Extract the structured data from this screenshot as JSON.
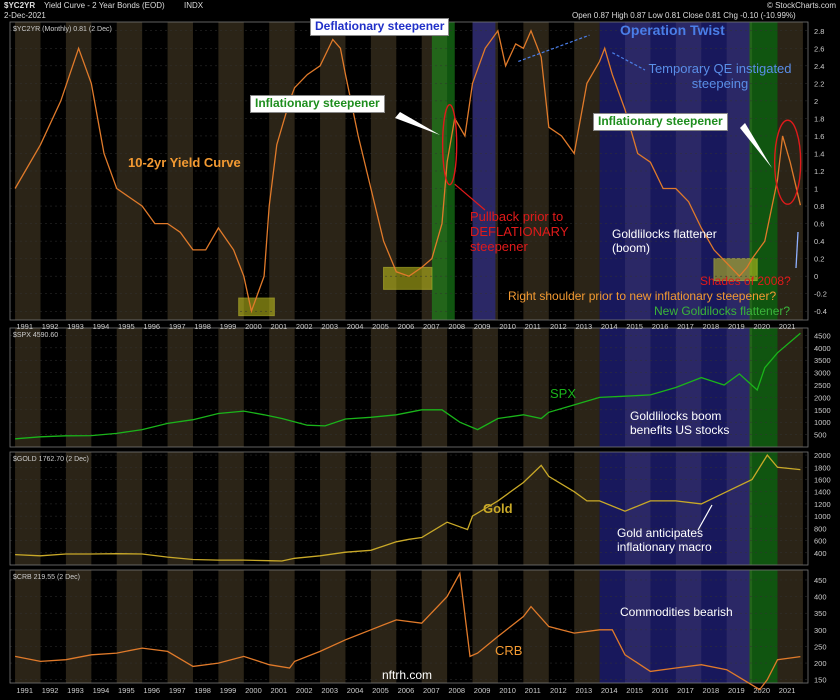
{
  "header": {
    "symbol": "$YC2YR",
    "name": "Yield Curve - 2 Year Bonds (EOD)",
    "exchange": "INDX",
    "date": "2-Dec-2021",
    "copyright": "© StockCharts.com",
    "ohlc": "Open 0.87  High 0.87  Low 0.81  Close 0.81  Chg -0.10 (-10.99%)"
  },
  "panels": [
    {
      "id": "yc",
      "legend": "$YC2YR (Monthly) 0.81 (2 Dec)",
      "color": "#e07a2a",
      "ylim": [
        -0.5,
        2.9
      ],
      "ticks": [
        -0.4,
        -0.2,
        0,
        0.2,
        0.4,
        0.6,
        0.8,
        1,
        1.2,
        1.4,
        1.6,
        1.8,
        2,
        2.2,
        2.4,
        2.6,
        2.8
      ]
    },
    {
      "id": "spx",
      "legend": "$SPX 4590.60",
      "color": "#1ab41a",
      "ylim": [
        0,
        4800
      ],
      "ticks": [
        500,
        1000,
        1500,
        2000,
        2500,
        3000,
        3500,
        4000,
        4500
      ]
    },
    {
      "id": "gold",
      "legend": "$GOLD 1762.70 (2 Dec)",
      "color": "#c9a928",
      "ylim": [
        200,
        2050
      ],
      "ticks": [
        400,
        600,
        800,
        1000,
        1200,
        1400,
        1600,
        1800,
        2000
      ]
    },
    {
      "id": "crb",
      "legend": "$CRB 219.55 (2 Dec)",
      "color": "#e07a2a",
      "ylim": [
        140,
        480
      ],
      "ticks": [
        150,
        200,
        250,
        300,
        350,
        400,
        450
      ]
    }
  ],
  "chart_data": {
    "type": "line",
    "x_years": [
      "1991",
      "1992",
      "1993",
      "1994",
      "1995",
      "1996",
      "1997",
      "1998",
      "1999",
      "2000",
      "2001",
      "2002",
      "2003",
      "2004",
      "2005",
      "2006",
      "2007",
      "2008",
      "2009",
      "2010",
      "2011",
      "2012",
      "2013",
      "2014",
      "2015",
      "2016",
      "2017",
      "2018",
      "2019",
      "2020",
      "2021"
    ],
    "x_range": [
      1990.8,
      2022.2
    ],
    "series": [
      {
        "panel": "yc",
        "x": [
          1991,
          1992,
          1992.8,
          1993.5,
          1994,
          1994.5,
          1995,
          1996,
          1996.5,
          1997,
          1997.5,
          1998,
          1998.5,
          1999,
          1999.6,
          2000,
          2000.3,
          2000.8,
          2001,
          2001.3,
          2001.8,
          2002,
          2002.5,
          2003,
          2003.5,
          2003.8,
          2004,
          2004.5,
          2005,
          2005.5,
          2006,
          2006.5,
          2007,
          2007.4,
          2007.8,
          2008,
          2008.3,
          2008.7,
          2009,
          2009.5,
          2010,
          2010.3,
          2010.7,
          2011,
          2011.3,
          2011.7,
          2012,
          2012.5,
          2013,
          2013.5,
          2014,
          2014.2,
          2014.5,
          2015,
          2015.5,
          2016,
          2016.5,
          2017,
          2017.5,
          2018,
          2018.5,
          2019,
          2019.5,
          2019.8,
          2020,
          2020.5,
          2021,
          2021.2,
          2021.5,
          2021.9
        ],
        "y": [
          1.0,
          1.5,
          2.0,
          2.6,
          2.2,
          1.4,
          1.0,
          0.8,
          0.6,
          0.6,
          0.5,
          0.3,
          0.3,
          0.55,
          0.3,
          0.0,
          -0.4,
          0.0,
          0.8,
          1.5,
          2.0,
          2.15,
          2.3,
          2.4,
          2.7,
          2.6,
          2.3,
          1.6,
          1.0,
          0.4,
          0.05,
          0.0,
          0.1,
          0.2,
          0.6,
          1.3,
          1.8,
          1.6,
          2.2,
          2.6,
          2.8,
          2.4,
          2.65,
          2.6,
          2.8,
          2.5,
          1.7,
          1.6,
          1.4,
          2.2,
          2.45,
          2.6,
          2.3,
          1.9,
          1.4,
          1.3,
          1.0,
          1.0,
          0.85,
          0.55,
          0.3,
          0.15,
          0.0,
          0.1,
          0.2,
          0.4,
          1.1,
          1.6,
          1.3,
          0.81
        ]
      },
      {
        "panel": "spx",
        "x": [
          1991,
          1992,
          1993,
          1994,
          1995,
          1996,
          1997,
          1998,
          1999,
          2000,
          2000.8,
          2001.5,
          2002.5,
          2003.2,
          2004,
          2005,
          2006,
          2007,
          2007.8,
          2008.5,
          2009.2,
          2010,
          2011,
          2011.7,
          2012,
          2013,
          2014,
          2015,
          2016,
          2017,
          2018,
          2018.9,
          2019.5,
          2020.2,
          2020.5,
          2021,
          2021.9
        ],
        "y": [
          330,
          410,
          450,
          460,
          550,
          700,
          950,
          1100,
          1350,
          1450,
          1300,
          1150,
          880,
          850,
          1130,
          1200,
          1300,
          1500,
          1500,
          1000,
          700,
          1150,
          1300,
          1150,
          1400,
          1700,
          2000,
          2050,
          2100,
          2400,
          2800,
          2500,
          2950,
          2300,
          3200,
          3800,
          4590
        ]
      },
      {
        "panel": "gold",
        "x": [
          1991,
          1992,
          1993,
          1994,
          1995,
          1996,
          1997,
          1998,
          1999,
          2000,
          2001,
          2001.5,
          2002,
          2003,
          2004,
          2005,
          2006,
          2006.5,
          2007,
          2008,
          2008.8,
          2009,
          2010,
          2011,
          2011.7,
          2012,
          2013,
          2013.5,
          2014,
          2015,
          2016,
          2017,
          2018,
          2019,
          2020,
          2020.6,
          2021,
          2021.9
        ],
        "y": [
          370,
          350,
          380,
          380,
          385,
          380,
          330,
          290,
          280,
          280,
          270,
          265,
          310,
          350,
          410,
          440,
          580,
          620,
          650,
          900,
          780,
          1000,
          1250,
          1550,
          1830,
          1650,
          1400,
          1250,
          1250,
          1080,
          1250,
          1250,
          1200,
          1400,
          1600,
          2000,
          1800,
          1762
        ]
      },
      {
        "panel": "crb",
        "x": [
          1991,
          1992,
          1993,
          1994,
          1995,
          1996,
          1997,
          1998,
          1999,
          2000,
          2001,
          2001.8,
          2002,
          2003,
          2004,
          2005,
          2006,
          2007,
          2008,
          2008.5,
          2008.9,
          2009.2,
          2010,
          2011,
          2011.3,
          2012,
          2013,
          2014,
          2014.5,
          2015,
          2016,
          2017,
          2018,
          2019,
          2020.3,
          2020.6,
          2021,
          2021.9
        ],
        "y": [
          220,
          205,
          210,
          225,
          230,
          245,
          235,
          190,
          200,
          220,
          195,
          185,
          205,
          235,
          270,
          300,
          330,
          320,
          400,
          470,
          220,
          230,
          280,
          340,
          370,
          310,
          290,
          300,
          300,
          225,
          175,
          185,
          195,
          180,
          120,
          150,
          210,
          219.55
        ]
      }
    ],
    "bands": [
      {
        "panel": "yc",
        "x0": 1999.8,
        "x1": 2001.2,
        "y0": -0.45,
        "y1": -0.25,
        "color": "#c8c81e",
        "label": ""
      },
      {
        "panel": "yc",
        "x0": 2005.5,
        "x1": 2007.4,
        "y0": -0.15,
        "y1": 0.1,
        "color": "#c8c81e",
        "label": ""
      },
      {
        "panel": "yc",
        "x0": 2018.5,
        "x1": 2020.2,
        "y0": -0.05,
        "y1": 0.2,
        "color": "#c8c81e",
        "label": ""
      }
    ],
    "spans": [
      {
        "x0": 2007.4,
        "x1": 2008.3,
        "color": "#1e9a1e",
        "panels": [
          "yc"
        ]
      },
      {
        "x0": 2009.0,
        "x1": 2009.9,
        "color": "#2b2ba8",
        "panels": [
          "yc"
        ]
      },
      {
        "x0": 2014.0,
        "x1": 2019.9,
        "color": "#2b2ba8",
        "panels": [
          "yc",
          "spx",
          "gold",
          "crb"
        ]
      },
      {
        "x0": 2019.9,
        "x1": 2021.0,
        "color": "#1e9a1e",
        "panels": [
          "yc",
          "spx",
          "gold",
          "crb"
        ]
      }
    ]
  },
  "annotations": {
    "title": "10-2yr Yield Curve",
    "deflationary": "Deflationary steepener",
    "operation_twist": "Operation Twist",
    "temp_qe": "Temporary QE instigated steepeing",
    "inflationary1": "Inflationary steepener",
    "inflationary2": "Inflationary steepener",
    "pullback": "Pullback prior to DEFLATIONARY steepener",
    "goldilocks_flat": "Goldlilocks flattener (boom)",
    "shades2008": "Shades of 2008?",
    "right_shoulder": "Right shoulder prior to new inflationary steepener?",
    "new_goldilocks": "New Goldilocks flattener?",
    "spx_label": "SPX",
    "goldilocks_boom": "Goldlilocks boom benefits US stocks",
    "gold_label": "Gold",
    "gold_anticipates": "Gold anticipates inflationary macro",
    "commodities": "Commodities bearish",
    "crb_label": "CRB",
    "watermark": "nftrh.com"
  }
}
